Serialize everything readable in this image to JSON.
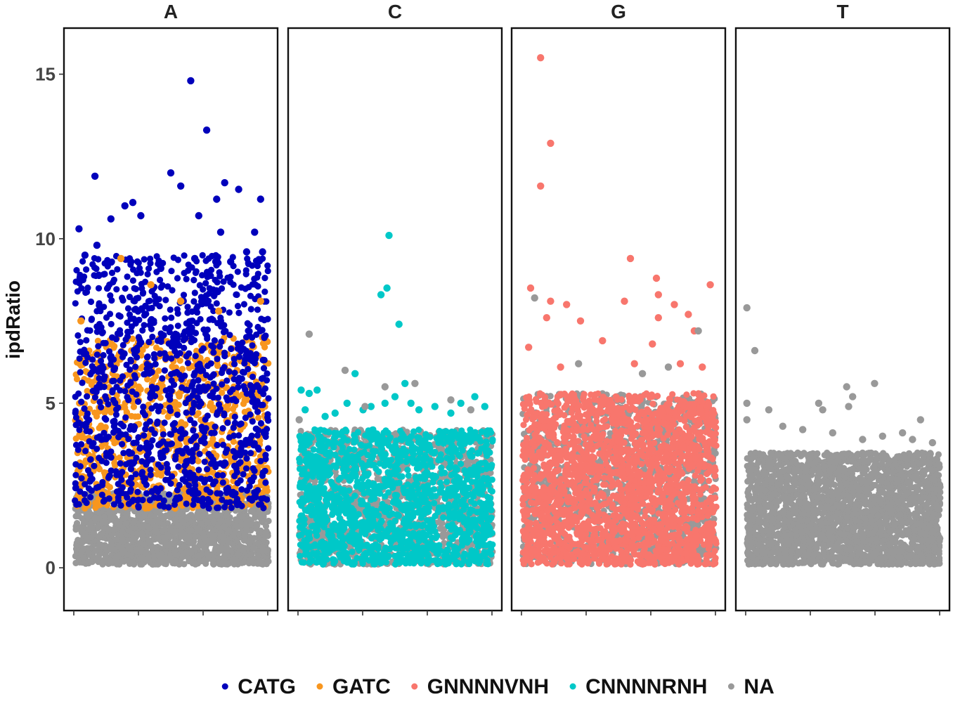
{
  "chart_data": {
    "type": "scatter",
    "title": "",
    "xlabel": "",
    "ylabel": "ipdRatio",
    "ylim": [
      -1.3,
      16.4
    ],
    "yticks": [
      0,
      5,
      10,
      15
    ],
    "facets": [
      "A",
      "C",
      "G",
      "T"
    ],
    "x_range": [
      0,
      1
    ],
    "legend": {
      "position": "bottom",
      "entries": [
        {
          "name": "CATG",
          "color": "#0000BB"
        },
        {
          "name": "GATC",
          "color": "#F8961E"
        },
        {
          "name": "GNNNNVNH",
          "color": "#F8766D"
        },
        {
          "name": "CNNNNRNH",
          "color": "#00C8C8"
        },
        {
          "name": "NA",
          "color": "#999999"
        }
      ]
    },
    "series": [
      {
        "name": "NA",
        "facet": "A",
        "x_range": [
          0.02,
          0.99
        ],
        "y_range": [
          0.1,
          2.3
        ],
        "approx_count": 1600
      },
      {
        "name": "GATC",
        "facet": "A",
        "x_range": [
          0.02,
          0.99
        ],
        "y_range": [
          1.8,
          7.0
        ],
        "approx_count": 900
      },
      {
        "name": "CATG",
        "facet": "A",
        "x_range": [
          0.02,
          0.99
        ],
        "y_range": [
          1.8,
          9.5
        ],
        "approx_count": 1100
      },
      {
        "name": "NA",
        "facet": "C",
        "x_range": [
          0.02,
          0.99
        ],
        "y_range": [
          0.1,
          4.2
        ],
        "approx_count": 1300
      },
      {
        "name": "CNNNNRNH",
        "facet": "C",
        "x_range": [
          0.02,
          0.99
        ],
        "y_range": [
          0.1,
          4.2
        ],
        "approx_count": 1500
      },
      {
        "name": "NA",
        "facet": "G",
        "x_range": [
          0.02,
          0.99
        ],
        "y_range": [
          0.1,
          5.3
        ],
        "approx_count": 1200
      },
      {
        "name": "GNNNNVNH",
        "facet": "G",
        "x_range": [
          0.02,
          0.99
        ],
        "y_range": [
          0.1,
          5.3
        ],
        "approx_count": 2200
      },
      {
        "name": "NA",
        "facet": "T",
        "x_range": [
          0.02,
          0.99
        ],
        "y_range": [
          0.1,
          3.5
        ],
        "approx_count": 2600
      }
    ],
    "outliers": [
      {
        "facet": "A",
        "series": "CATG",
        "points": [
          [
            0.04,
            10.3
          ],
          [
            0.12,
            11.9
          ],
          [
            0.13,
            9.8
          ],
          [
            0.2,
            10.6
          ],
          [
            0.27,
            11.0
          ],
          [
            0.31,
            11.1
          ],
          [
            0.35,
            10.7
          ],
          [
            0.5,
            12.0
          ],
          [
            0.55,
            11.6
          ],
          [
            0.6,
            14.8
          ],
          [
            0.64,
            10.7
          ],
          [
            0.68,
            13.3
          ],
          [
            0.73,
            11.2
          ],
          [
            0.75,
            10.2
          ],
          [
            0.77,
            11.7
          ],
          [
            0.84,
            11.5
          ],
          [
            0.92,
            10.2
          ],
          [
            0.95,
            11.2
          ],
          [
            0.07,
            9.5
          ],
          [
            0.3,
            9.3
          ],
          [
            0.45,
            9.1
          ],
          [
            0.62,
            9.4
          ],
          [
            0.8,
            9.3
          ],
          [
            0.88,
            9.6
          ],
          [
            0.96,
            9.6
          ]
        ]
      },
      {
        "facet": "A",
        "series": "GATC",
        "points": [
          [
            0.25,
            9.4
          ],
          [
            0.05,
            7.5
          ],
          [
            0.4,
            8.6
          ],
          [
            0.55,
            8.1
          ],
          [
            0.95,
            8.1
          ],
          [
            0.74,
            7.8
          ]
        ]
      },
      {
        "facet": "C",
        "series": "CNNNNRNH",
        "points": [
          [
            0.47,
            10.1
          ],
          [
            0.46,
            8.5
          ],
          [
            0.43,
            8.3
          ],
          [
            0.52,
            7.4
          ],
          [
            0.3,
            5.9
          ],
          [
            0.03,
            5.4
          ],
          [
            0.07,
            5.3
          ],
          [
            0.11,
            5.4
          ],
          [
            0.15,
            4.6
          ],
          [
            0.2,
            4.7
          ],
          [
            0.26,
            5.0
          ],
          [
            0.38,
            4.9
          ],
          [
            0.45,
            5.0
          ],
          [
            0.5,
            5.2
          ],
          [
            0.55,
            5.6
          ],
          [
            0.62,
            4.8
          ],
          [
            0.7,
            4.9
          ],
          [
            0.78,
            4.7
          ],
          [
            0.83,
            5.0
          ],
          [
            0.9,
            5.2
          ],
          [
            0.95,
            4.9
          ],
          [
            0.05,
            4.8
          ],
          [
            0.34,
            4.8
          ],
          [
            0.58,
            5.0
          ]
        ]
      },
      {
        "facet": "C",
        "series": "NA",
        "points": [
          [
            0.07,
            7.1
          ],
          [
            0.25,
            6.0
          ],
          [
            0.45,
            5.5
          ],
          [
            0.6,
            5.6
          ],
          [
            0.78,
            5.1
          ],
          [
            0.02,
            4.5
          ],
          [
            0.35,
            4.9
          ],
          [
            0.88,
            4.8
          ]
        ]
      },
      {
        "facet": "G",
        "series": "GNNNNVNH",
        "points": [
          [
            0.11,
            15.5
          ],
          [
            0.16,
            12.9
          ],
          [
            0.11,
            11.6
          ],
          [
            0.06,
            8.5
          ],
          [
            0.14,
            7.6
          ],
          [
            0.16,
            8.1
          ],
          [
            0.24,
            8.0
          ],
          [
            0.31,
            7.5
          ],
          [
            0.53,
            8.1
          ],
          [
            0.56,
            9.4
          ],
          [
            0.69,
            8.8
          ],
          [
            0.7,
            8.3
          ],
          [
            0.7,
            7.6
          ],
          [
            0.78,
            8.0
          ],
          [
            0.81,
            6.2
          ],
          [
            0.85,
            7.7
          ],
          [
            0.88,
            7.2
          ],
          [
            0.96,
            8.6
          ],
          [
            0.05,
            6.7
          ],
          [
            0.21,
            6.1
          ],
          [
            0.42,
            6.9
          ],
          [
            0.58,
            6.2
          ],
          [
            0.67,
            6.8
          ],
          [
            0.92,
            6.1
          ]
        ]
      },
      {
        "facet": "G",
        "series": "NA",
        "points": [
          [
            0.08,
            8.2
          ],
          [
            0.9,
            7.2
          ],
          [
            0.3,
            6.2
          ],
          [
            0.62,
            5.9
          ],
          [
            0.75,
            6.1
          ]
        ]
      },
      {
        "facet": "T",
        "series": "NA",
        "points": [
          [
            0.02,
            7.9
          ],
          [
            0.06,
            6.6
          ],
          [
            0.02,
            5.0
          ],
          [
            0.02,
            4.5
          ],
          [
            0.13,
            4.8
          ],
          [
            0.38,
            5.0
          ],
          [
            0.4,
            4.8
          ],
          [
            0.52,
            5.5
          ],
          [
            0.55,
            5.2
          ],
          [
            0.53,
            4.9
          ],
          [
            0.66,
            5.6
          ],
          [
            0.89,
            4.5
          ],
          [
            0.8,
            4.1
          ],
          [
            0.95,
            3.8
          ],
          [
            0.2,
            4.3
          ],
          [
            0.3,
            4.2
          ],
          [
            0.45,
            4.1
          ],
          [
            0.6,
            3.9
          ],
          [
            0.7,
            4.0
          ],
          [
            0.85,
            3.9
          ]
        ]
      }
    ]
  }
}
